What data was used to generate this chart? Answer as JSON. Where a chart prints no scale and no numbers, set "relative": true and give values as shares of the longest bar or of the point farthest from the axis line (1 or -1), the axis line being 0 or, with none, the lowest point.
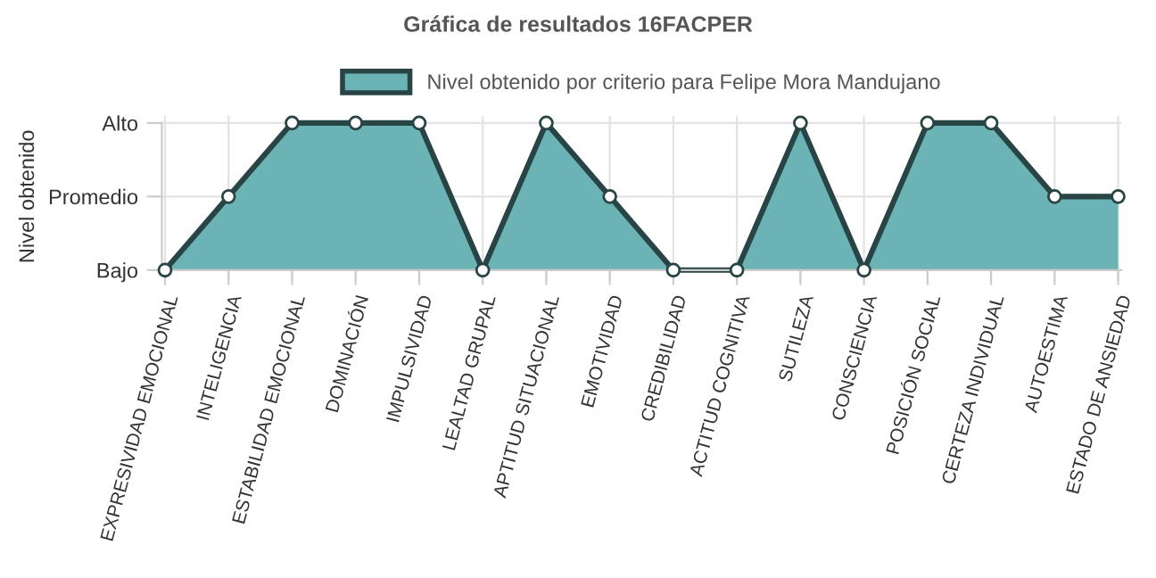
{
  "chart_data": {
    "type": "area",
    "title": "Gráfica de resultados 16FACPER",
    "ylabel": "Nivel obtenido",
    "categories": [
      "EXPRESIVIDAD EMOCIONAL",
      "INTELIGENCIA",
      "ESTABILIDAD EMOCIONAL",
      "DOMINACIÓN",
      "IMPULSIVIDAD",
      "LEALTAD GRUPAL",
      "APTITUD SITUACIONAL",
      "EMOTIVIDAD",
      "CREDIBILIDAD",
      "ACTITUD COGNITIVA",
      "SUTILEZA",
      "CONSCIENCIA",
      "POSICIÓN SOCIAL",
      "CERTEZA INDIVIDUAL",
      "AUTOESTIMA",
      "ESTADO DE ANSIEDAD"
    ],
    "series": [
      {
        "name": "Nivel obtenido por criterio para Felipe Mora Mandujano",
        "color": "#6cb3b6",
        "values": [
          0,
          0.5,
          1,
          1,
          1,
          0,
          1,
          0.5,
          0,
          0,
          1,
          0,
          1,
          1,
          0.5,
          0.5
        ]
      }
    ],
    "relative": true,
    "annotations": [
      "Bajo",
      "Promedio",
      "Alto"
    ],
    "grid": true,
    "legend": "top",
    "marker": "circle"
  }
}
